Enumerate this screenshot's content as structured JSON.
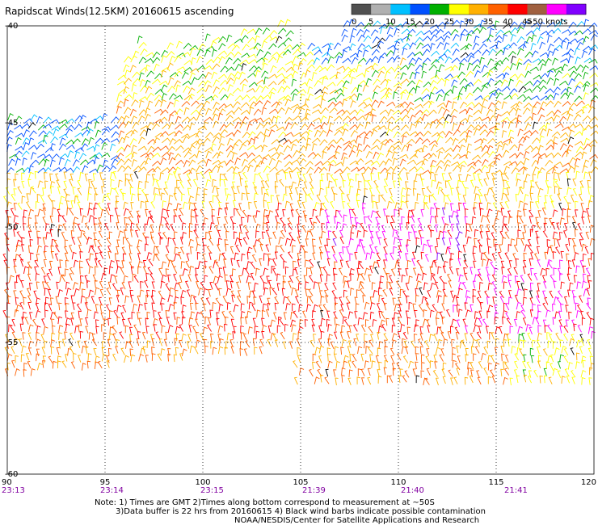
{
  "title": "Rapidscat Winds(12.5KM) 20160615 ascending",
  "legend": {
    "labels": [
      "0",
      "5",
      "10",
      "15",
      "20",
      "25",
      "30",
      "35",
      "40",
      "45",
      ">50 knots"
    ],
    "colors": [
      "#505050",
      "#b0b0b0",
      "#00c0ff",
      "#0050ff",
      "#00b000",
      "#ffff00",
      "#ffb000",
      "#ff6000",
      "#ff0000",
      "#a06040",
      "#ff00ff",
      "#8000ff"
    ]
  },
  "axes": {
    "x_ticks": [
      "90",
      "95",
      "100",
      "105",
      "110",
      "115",
      "120"
    ],
    "y_ticks": [
      "-40",
      "-45",
      "-50",
      "-55",
      "-60"
    ],
    "times": [
      "23:13",
      "23:14",
      "23:15",
      "21:39",
      "21:40",
      "21:41"
    ]
  },
  "notes": {
    "line1": "Note: 1) Times are GMT 2)Times along bottom correspond to measurement at ~50S",
    "line2": "3)Data buffer is 22 hrs from 20160615 4) Black wind barbs indicate possible contamination",
    "line3": "NOAA/NESDIS/Center for Satellite Applications and Research"
  }
}
